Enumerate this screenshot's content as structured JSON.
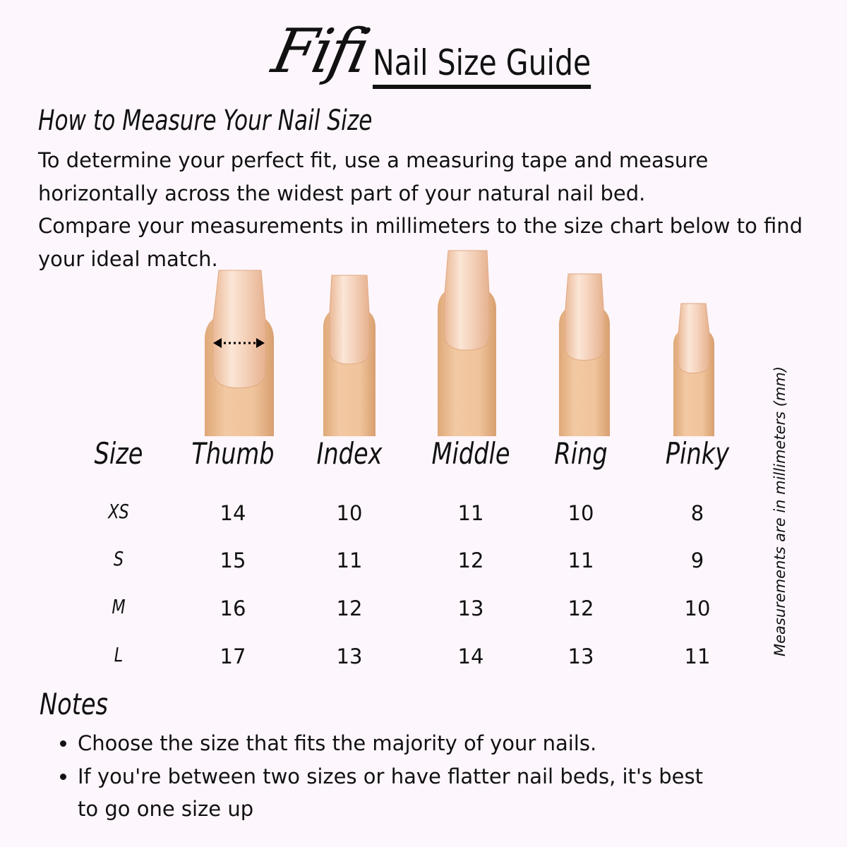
{
  "brand": "Fifi",
  "title": "Nail Size Guide",
  "how_to": {
    "heading": "How to Measure Your Nail Size",
    "paragraphs": [
      "To determine your perfect fit, use a measuring tape and measure horizontally across the widest part of your natural nail bed.",
      "Compare your measurements in millimeters to the size chart below to find your ideal match."
    ]
  },
  "table": {
    "headers": [
      "Size",
      "Thumb",
      "Index",
      "Middle",
      "Ring",
      "Pinky"
    ],
    "rows": [
      {
        "size": "XS",
        "values": [
          "14",
          "10",
          "11",
          "10",
          "8"
        ]
      },
      {
        "size": "S",
        "values": [
          "15",
          "11",
          "12",
          "11",
          "9"
        ]
      },
      {
        "size": "M",
        "values": [
          "16",
          "12",
          "13",
          "12",
          "10"
        ]
      },
      {
        "size": "L",
        "values": [
          "17",
          "13",
          "14",
          "13",
          "11"
        ]
      }
    ],
    "unit_note": "Measurements are in millimeters (mm)"
  },
  "notes": {
    "heading": "Notes",
    "items": [
      "Choose the size that fits the majority of your nails.",
      "If you're between two sizes or have flatter nail beds, it's best to go one size up"
    ]
  },
  "colors": {
    "background": "#fdf6fc",
    "skin": "#efc39b",
    "nail": "#f3d2b8",
    "text": "#111111"
  },
  "icons": [
    "measure-arrow-icon"
  ]
}
